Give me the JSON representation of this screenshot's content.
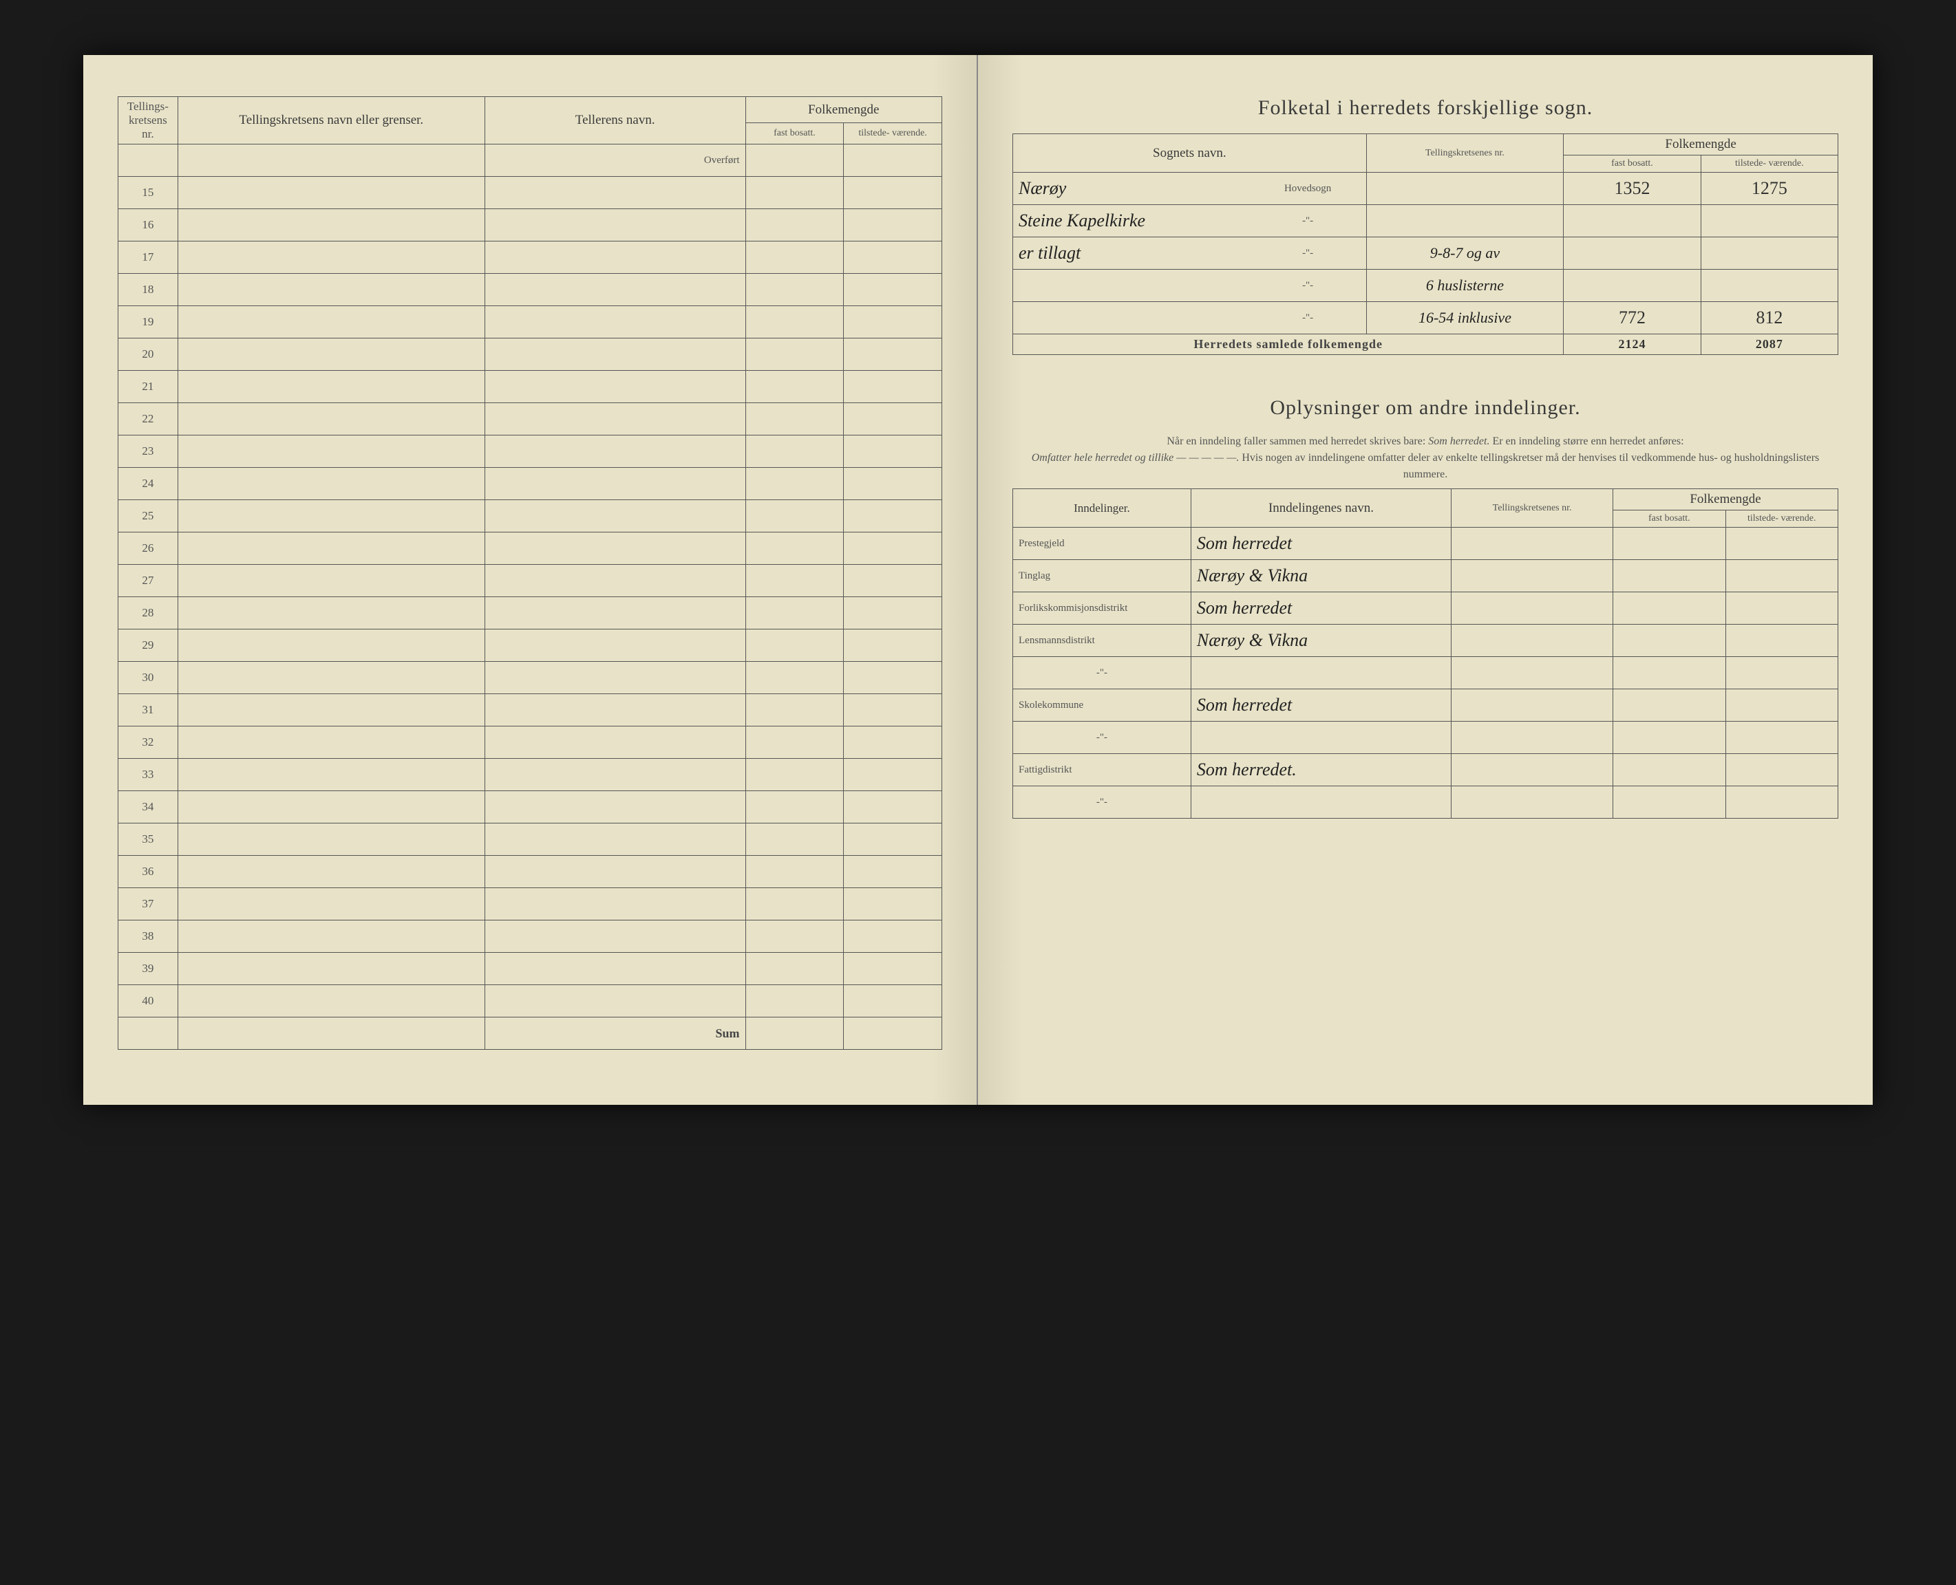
{
  "leftPage": {
    "headers": {
      "kretsNr": "Tellings-\nkretsens\nnr.",
      "kretsNavn": "Tellingskretsens navn eller grenser.",
      "tellerNavn": "Tellerens navn.",
      "folkemengde": "Folkemengde",
      "fastBosatt": "fast\nbosatt.",
      "tilstede": "tilstede-\nværende."
    },
    "overfort": "Overført",
    "rowStart": 15,
    "rowEnd": 40,
    "sum": "Sum"
  },
  "rightPage": {
    "sognTable": {
      "title": "Folketal i herredets forskjellige sogn.",
      "headers": {
        "sognNavn": "Sognets navn.",
        "kretsNr": "Tellingskretsenes\nnr.",
        "folkemengde": "Folkemengde",
        "fastBosatt": "fast\nbosatt.",
        "tilstede": "tilstede-\nværende."
      },
      "hovedsogn": "Hovedsogn",
      "rows": [
        {
          "navn": "Nærøy",
          "printed": "Hovedsogn",
          "nr": "",
          "fast": "1352",
          "tilst": "1275"
        },
        {
          "navn": "Steine Kapelkirke",
          "printed": "-\"-",
          "nr": "",
          "fast": "",
          "tilst": ""
        },
        {
          "navn": "er tillagt",
          "printed": "-\"-",
          "nr": "9-8-7 og av",
          "fast": "",
          "tilst": ""
        },
        {
          "navn": "",
          "printed": "-\"-",
          "nr": "6 huslisterne",
          "fast": "",
          "tilst": ""
        },
        {
          "navn": "",
          "printed": "-\"-",
          "nr": "16-54 inklusive",
          "fast": "772",
          "tilst": "812"
        }
      ],
      "totalLabel": "Herredets samlede folkemengde",
      "totalFast": "2124",
      "totalTilst": "2087"
    },
    "inndelinger": {
      "title": "Oplysninger om andre inndelinger.",
      "note1": "Når en inndeling faller sammen med herredet skrives bare:",
      "noteEm1": "Som herredet.",
      "note2": "Er en inndeling større enn herredet anføres:",
      "noteEm2": "Omfatter hele herredet og tillike — — — — —.",
      "note3": "Hvis nogen av inndelingene omfatter deler av enkelte tellingskretser må der henvises til vedkommende hus- og husholdningslisters nummere.",
      "headers": {
        "inndelinger": "Inndelinger.",
        "navn": "Inndelingenes navn.",
        "kretsNr": "Tellingskretsenes\nnr.",
        "folkemengde": "Folkemengde",
        "fastBosatt": "fast\nbosatt.",
        "tilstede": "tilstede-\nværende."
      },
      "rows": [
        {
          "label": "Prestegjeld",
          "value": "Som herredet"
        },
        {
          "label": "Tinglag",
          "value": "Nærøy & Vikna"
        },
        {
          "label": "Forlikskommisjonsdistrikt",
          "value": "Som herredet"
        },
        {
          "label": "Lensmannsdistrikt",
          "value": "Nærøy & Vikna"
        },
        {
          "label": "-\"-",
          "value": ""
        },
        {
          "label": "Skolekommune",
          "value": "Som herredet"
        },
        {
          "label": "-\"-",
          "value": ""
        },
        {
          "label": "Fattigdistrikt",
          "value": "Som herredet."
        },
        {
          "label": "-\"-",
          "value": ""
        }
      ]
    }
  }
}
